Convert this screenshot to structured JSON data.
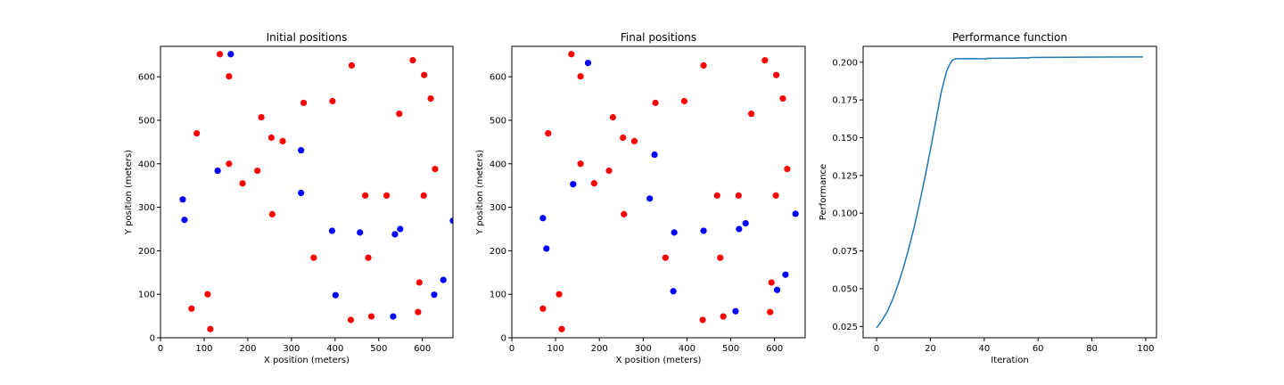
{
  "chart_data": [
    {
      "type": "scatter",
      "title": "Initial positions",
      "xlabel": "X position (meters)",
      "ylabel": "Y position (meters)",
      "xlim": [
        0,
        670
      ],
      "ylim": [
        0,
        670
      ],
      "xticks": [
        0,
        100,
        200,
        300,
        400,
        500,
        600
      ],
      "yticks": [
        0,
        100,
        200,
        300,
        400,
        500,
        600
      ],
      "grid": false,
      "series": [
        {
          "color": "#ff0000",
          "points": [
            [
              136,
              652
            ],
            [
              157,
              601
            ],
            [
              438,
              626
            ],
            [
              578,
              638
            ],
            [
              604,
              604
            ],
            [
              619,
              550
            ],
            [
              83,
              470
            ],
            [
              328,
              540
            ],
            [
              394,
              544
            ],
            [
              547,
              515
            ],
            [
              231,
              507
            ],
            [
              254,
              460
            ],
            [
              280,
              452
            ],
            [
              157,
              400
            ],
            [
              222,
              384
            ],
            [
              188,
              355
            ],
            [
              629,
              388
            ],
            [
              469,
              327
            ],
            [
              518,
              327
            ],
            [
              603,
              327
            ],
            [
              256,
              284
            ],
            [
              351,
              184
            ],
            [
              476,
              184
            ],
            [
              593,
              127
            ],
            [
              108,
              100
            ],
            [
              71,
              67
            ],
            [
              114,
              20
            ],
            [
              436,
              41
            ],
            [
              483,
              49
            ],
            [
              590,
              59
            ]
          ]
        },
        {
          "color": "#0000ff",
          "points": [
            [
              161,
              652
            ],
            [
              131,
              384
            ],
            [
              322,
              431
            ],
            [
              322,
              333
            ],
            [
              51,
              318
            ],
            [
              55,
              271
            ],
            [
              393,
              246
            ],
            [
              457,
              242
            ],
            [
              549,
              250
            ],
            [
              537,
              238
            ],
            [
              670,
              269
            ],
            [
              648,
              133
            ],
            [
              627,
              99
            ],
            [
              401,
              98
            ],
            [
              533,
              49
            ]
          ]
        }
      ]
    },
    {
      "type": "scatter",
      "title": "Final positions",
      "xlabel": "X position (meters)",
      "ylabel": "Y position (meters)",
      "xlim": [
        0,
        670
      ],
      "ylim": [
        0,
        670
      ],
      "xticks": [
        0,
        100,
        200,
        300,
        400,
        500,
        600
      ],
      "yticks": [
        0,
        100,
        200,
        300,
        400,
        500,
        600
      ],
      "grid": false,
      "series": [
        {
          "color": "#ff0000",
          "points": [
            [
              136,
              652
            ],
            [
              157,
              601
            ],
            [
              438,
              626
            ],
            [
              578,
              638
            ],
            [
              604,
              604
            ],
            [
              619,
              550
            ],
            [
              83,
              470
            ],
            [
              328,
              540
            ],
            [
              394,
              544
            ],
            [
              547,
              515
            ],
            [
              231,
              507
            ],
            [
              254,
              460
            ],
            [
              280,
              452
            ],
            [
              157,
              400
            ],
            [
              222,
              384
            ],
            [
              188,
              355
            ],
            [
              629,
              388
            ],
            [
              469,
              327
            ],
            [
              518,
              327
            ],
            [
              603,
              327
            ],
            [
              256,
              284
            ],
            [
              351,
              184
            ],
            [
              476,
              184
            ],
            [
              593,
              127
            ],
            [
              108,
              100
            ],
            [
              71,
              67
            ],
            [
              114,
              20
            ],
            [
              436,
              41
            ],
            [
              483,
              49
            ],
            [
              590,
              59
            ]
          ]
        },
        {
          "color": "#0000ff",
          "points": [
            [
              174,
              632
            ],
            [
              140,
              353
            ],
            [
              326,
              421
            ],
            [
              315,
              320
            ],
            [
              71,
              275
            ],
            [
              79,
              205
            ],
            [
              371,
              242
            ],
            [
              438,
              246
            ],
            [
              519,
              250
            ],
            [
              534,
              263
            ],
            [
              648,
              285
            ],
            [
              625,
              145
            ],
            [
              606,
              110
            ],
            [
              369,
              107
            ],
            [
              511,
              61
            ]
          ]
        }
      ]
    },
    {
      "type": "line",
      "title": "Performance function",
      "xlabel": "Iteration",
      "ylabel": "Performance",
      "xlim": [
        -5,
        104
      ],
      "ylim": [
        0.0175,
        0.2105
      ],
      "xticks": [
        0,
        20,
        40,
        60,
        80,
        100
      ],
      "yticks": [
        0.025,
        0.05,
        0.075,
        0.1,
        0.125,
        0.15,
        0.175,
        0.2
      ],
      "ytick_labels": [
        "0.025",
        "0.050",
        "0.075",
        "0.100",
        "0.125",
        "0.150",
        "0.175",
        "0.200"
      ],
      "grid": false,
      "series": [
        {
          "color": "#1f77b4",
          "x": [
            0,
            2,
            4,
            6,
            8,
            10,
            12,
            14,
            16,
            18,
            20,
            22,
            24,
            26,
            27,
            28,
            29,
            30,
            35,
            40,
            40.5,
            41,
            50,
            56,
            56.5,
            57,
            70,
            85,
            99
          ],
          "y": [
            0.024,
            0.029,
            0.035,
            0.043,
            0.053,
            0.064,
            0.077,
            0.091,
            0.107,
            0.124,
            0.142,
            0.161,
            0.18,
            0.194,
            0.198,
            0.201,
            0.202,
            0.2023,
            0.2024,
            0.2022,
            0.2021,
            0.2025,
            0.2027,
            0.2029,
            0.2027,
            0.2031,
            0.2033,
            0.2034,
            0.2035
          ]
        }
      ]
    }
  ]
}
